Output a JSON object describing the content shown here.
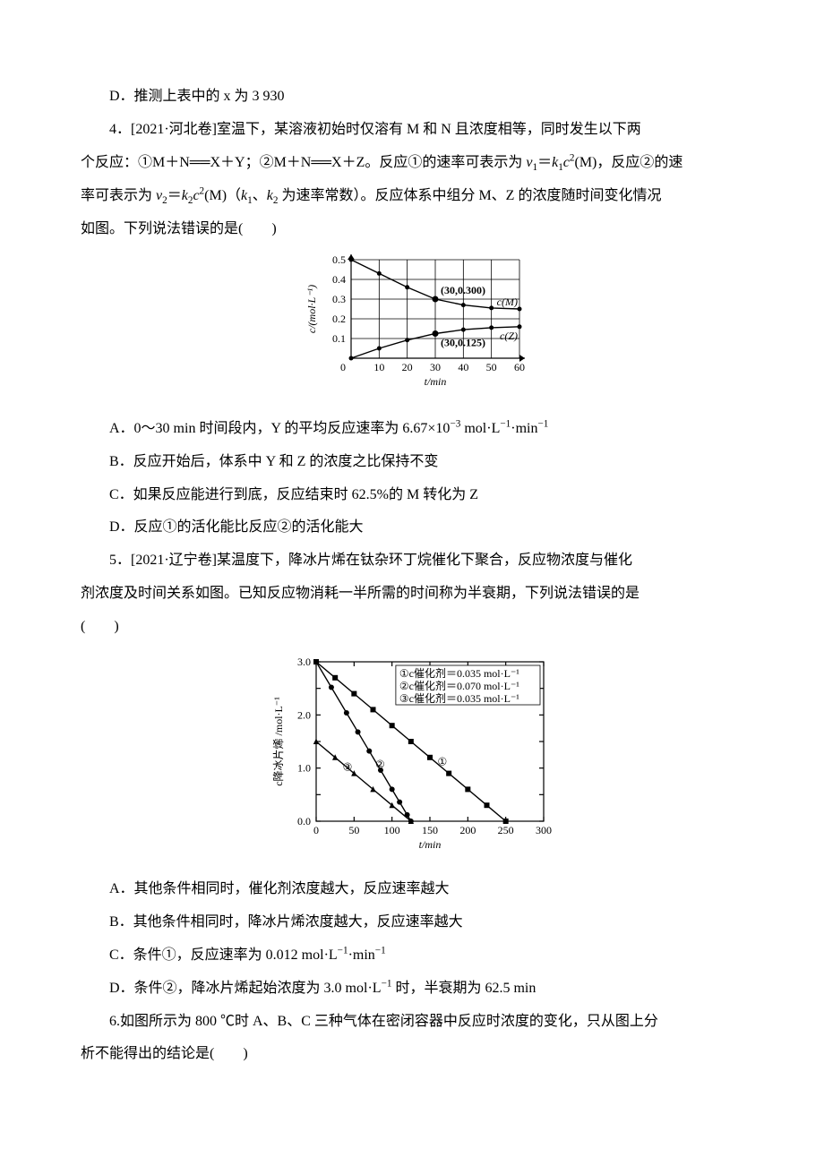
{
  "d_option": "D．推测上表中的 x 为 3 930",
  "q4": {
    "stem_l1": "4．[2021·河北卷]室温下，某溶液初始时仅溶有 M 和 N 且浓度相等，同时发生以下两",
    "stem_l2_a": "个反应：①M＋N══X＋Y；②M＋N══X＋Z。反应①的速率可表示为 ",
    "v1": "v",
    "v1sub": "1",
    "eq": "＝",
    "k1": "k",
    "k1sub": "1",
    "c2m": "c",
    "c2sup": "2",
    "c2arg": "(M)",
    "stem_l2_b": "，反应②的速",
    "stem_l3_a": "率可表示为 ",
    "v2": "v",
    "v2sub": "2",
    "k2": "k",
    "k2sub": "2",
    "stem_l3_b": "(M)（",
    "knote": "k",
    "k1n": "1",
    "sep": "、",
    "k2n": "2",
    "stem_l3_c": " 为速率常数）。反应体系中组分 M、Z 的浓度随时间变化情况",
    "stem_l4": "如图。下列说法错误的是(　　)",
    "chart": {
      "x_min": 0,
      "x_max": 60,
      "x_step": 10,
      "y_min": 0,
      "y_max": 0.5,
      "y_step": 0.1,
      "x_label": "t/min",
      "y_label": "c/(mol·L⁻¹)",
      "ann1": "(30,0.300)",
      "ann2": "(30,0.125)",
      "lblM": "c(M)",
      "lblZ": "c(Z)",
      "M_pts": [
        [
          0,
          0.5
        ],
        [
          10,
          0.43
        ],
        [
          20,
          0.36
        ],
        [
          30,
          0.3
        ],
        [
          40,
          0.27
        ],
        [
          50,
          0.255
        ],
        [
          60,
          0.25
        ]
      ],
      "Z_pts": [
        [
          0,
          0.0
        ],
        [
          10,
          0.05
        ],
        [
          20,
          0.092
        ],
        [
          30,
          0.125
        ],
        [
          40,
          0.145
        ],
        [
          50,
          0.155
        ],
        [
          60,
          0.16
        ]
      ]
    },
    "A_a": "A．0～30 min 时间段内，Y 的平均反应速率为 6.67×10",
    "A_sup": "−3",
    "A_b": " mol·L",
    "A_sup2": "−1",
    "A_c": "·min",
    "A_sup3": "−1",
    "B": "B．反应开始后，体系中 Y 和 Z 的浓度之比保持不变",
    "C": "C．如果反应能进行到底，反应结束时 62.5%的 M 转化为 Z",
    "D": "D．反应①的活化能比反应②的活化能大"
  },
  "q5": {
    "stem_l1": "5．[2021·辽宁卷]某温度下，降冰片烯在钛杂环丁烷催化下聚合，反应物浓度与催化",
    "stem_l2": "剂浓度及时间关系如图。已知反应物消耗一半所需的时间称为半衰期，下列说法错误的是",
    "stem_l3": "(　　)",
    "chart": {
      "x_min": 0,
      "x_max": 300,
      "x_step": 50,
      "y_min": 0,
      "y_max": 3.0,
      "y_step": 0.5,
      "y_ticks": [
        0,
        1.0,
        2.0,
        3.0
      ],
      "x_label": "t/min",
      "y_label": "c降冰片烯 /mol·L⁻¹",
      "legend_1": "①c催化剂＝0.035 mol·L⁻¹",
      "legend_2": "②c催化剂＝0.070 mol·L⁻¹",
      "legend_3": "③c催化剂＝0.035 mol·L⁻¹",
      "s1": [
        [
          0,
          3.0
        ],
        [
          25,
          2.7
        ],
        [
          50,
          2.4
        ],
        [
          75,
          2.1
        ],
        [
          100,
          1.8
        ],
        [
          125,
          1.5
        ],
        [
          150,
          1.2
        ],
        [
          175,
          0.9
        ],
        [
          200,
          0.6
        ],
        [
          225,
          0.3
        ],
        [
          250,
          0.0
        ]
      ],
      "s2": [
        [
          0,
          3.0
        ],
        [
          20,
          2.52
        ],
        [
          40,
          2.04
        ],
        [
          55,
          1.68
        ],
        [
          70,
          1.32
        ],
        [
          85,
          0.96
        ],
        [
          100,
          0.6
        ],
        [
          110,
          0.36
        ],
        [
          120,
          0.12
        ],
        [
          125,
          0.0
        ]
      ],
      "s3": [
        [
          0,
          1.5
        ],
        [
          25,
          1.2
        ],
        [
          50,
          0.9
        ],
        [
          75,
          0.6
        ],
        [
          100,
          0.3
        ],
        [
          125,
          0.0
        ]
      ],
      "tag1": "①",
      "tag2": "②",
      "tag3": "③"
    },
    "A": "A．其他条件相同时，催化剂浓度越大，反应速率越大",
    "B": "B．其他条件相同时，降冰片烯浓度越大，反应速率越大",
    "C_a": "C．条件①，反应速率为 0.012 mol·L",
    "C_sup": "−1",
    "C_b": "·min",
    "C_sup2": "−1",
    "D_a": "D．条件②，降冰片烯起始浓度为 3.0 mol·L",
    "D_sup": "−1",
    "D_b": " 时，半衰期为 62.5 min"
  },
  "q6": {
    "stem_l1": "6.如图所示为 800 ℃时 A、B、C 三种气体在密闭容器中反应时浓度的变化，只从图上分",
    "stem_l2": "析不能得出的结论是(　　)"
  }
}
